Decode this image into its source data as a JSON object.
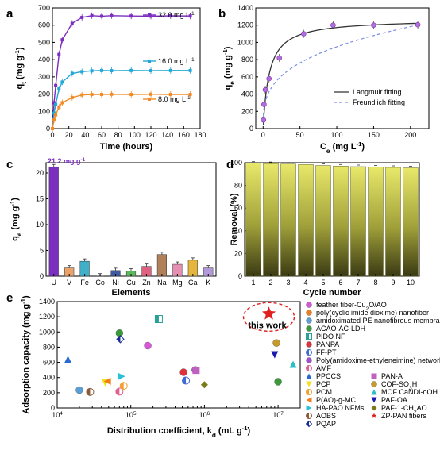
{
  "figure": {
    "background": "#ffffff"
  },
  "chart_data": [
    {
      "panel": "a",
      "type": "line",
      "xlabel": "Time (hours)",
      "ylabel": "q",
      "ylabel_sub": "t",
      "ylabel_unit": " (mg g",
      "ylabel_unit_end": ")",
      "ylabel_exp": "-1",
      "xlim": [
        0,
        180
      ],
      "ylim": [
        0,
        700
      ],
      "xticks": [
        "0",
        "20",
        "40",
        "60",
        "80",
        "100",
        "120",
        "140",
        "160",
        "180"
      ],
      "yticks": [
        "0",
        "100",
        "200",
        "300",
        "400",
        "500",
        "600",
        "700"
      ],
      "x": [
        0,
        2,
        4,
        8,
        12,
        24,
        36,
        48,
        60,
        72,
        96,
        120,
        144,
        168
      ],
      "series": [
        {
          "name": "32.0 mg L",
          "name_exp": "-1",
          "color": "#7b2fbf",
          "values": [
            0,
            150,
            250,
            430,
            515,
            610,
            645,
            655,
            652,
            655,
            653,
            652,
            654,
            653
          ]
        },
        {
          "name": "16.0 mg L",
          "name_exp": "-1",
          "color": "#22a7d6",
          "values": [
            0,
            90,
            140,
            230,
            270,
            320,
            330,
            335,
            337,
            336,
            337,
            336,
            337,
            337
          ]
        },
        {
          "name": "8.0 mg L",
          "name_exp": "-1",
          "color": "#f28c28",
          "values": [
            0,
            50,
            80,
            125,
            150,
            180,
            195,
            198,
            198,
            199,
            198,
            199,
            198,
            198
          ]
        }
      ]
    },
    {
      "panel": "b",
      "type": "scatter",
      "xlabel": "C",
      "xlabel_sub": "e",
      "xlabel_unit": " (mg L",
      "xlabel_unit_end": ")",
      "xlabel_exp": "-1",
      "ylabel": "q",
      "ylabel_sub": "e",
      "ylabel_unit": " (mg g",
      "ylabel_unit_end": ")",
      "ylabel_exp": "-1",
      "xlim": [
        -10,
        225
      ],
      "ylim": [
        0,
        1400
      ],
      "xticks": [
        "0",
        "50",
        "100",
        "150",
        "200"
      ],
      "yticks": [
        "0",
        "200",
        "400",
        "600",
        "800",
        "1000",
        "1200",
        "1400"
      ],
      "points": [
        {
          "x": 0.5,
          "y": 100
        },
        {
          "x": 1.2,
          "y": 280
        },
        {
          "x": 3,
          "y": 450
        },
        {
          "x": 8,
          "y": 580
        },
        {
          "x": 22,
          "y": 820
        },
        {
          "x": 55,
          "y": 1100
        },
        {
          "x": 95,
          "y": 1200
        },
        {
          "x": 150,
          "y": 1200
        },
        {
          "x": 210,
          "y": 1205
        }
      ],
      "marker_color": "#b36be0",
      "fits": [
        {
          "name": "Langmuir fitting",
          "color": "#333333",
          "qm": 1270,
          "KL": 0.12
        },
        {
          "name": "Freundlich fitting",
          "color": "#7a8fe0",
          "KF": 220,
          "n": 3.15
        }
      ]
    },
    {
      "panel": "c",
      "type": "bar",
      "xlabel": "Elements",
      "ylabel": "q",
      "ylabel_sub": "e",
      "ylabel_unit": " (mg g",
      "ylabel_unit_end": ")",
      "ylabel_exp": "-1",
      "ylim": [
        0,
        22
      ],
      "yticks": [
        "0",
        "5",
        "10",
        "15",
        "20"
      ],
      "categories": [
        "U",
        "V",
        "Fe",
        "Co",
        "Ni",
        "Cu",
        "Zn",
        "Na",
        "Mg",
        "Ca",
        "K"
      ],
      "values": [
        21.2,
        1.6,
        2.9,
        0.05,
        1.1,
        1.0,
        1.9,
        4.2,
        2.3,
        3.1,
        1.6
      ],
      "colors": [
        "#7b2fbf",
        "#e9a36a",
        "#3fb0c8",
        "#9bbbd2",
        "#3f5aa0",
        "#5cb85c",
        "#e06080",
        "#b08058",
        "#e78fb3",
        "#e6b53d",
        "#b399d9"
      ],
      "annotation": "21.2 mg g",
      "annotation_exp": "-1"
    },
    {
      "panel": "d",
      "type": "bar",
      "xlabel": "Cycle number",
      "ylabel": "Removal (%)",
      "ylim": [
        0,
        100
      ],
      "yticks": [
        "0",
        "20",
        "40",
        "60",
        "80",
        "100"
      ],
      "categories": [
        "1",
        "2",
        "3",
        "4",
        "5",
        "6",
        "7",
        "8",
        "9",
        "10"
      ],
      "values": [
        99.5,
        99.2,
        98.8,
        98.3,
        97.5,
        97.0,
        96.5,
        96.2,
        95.8,
        95.4
      ],
      "bar_color_top": "#e8e86a",
      "bar_color_bottom": "#3a3a14"
    },
    {
      "panel": "e",
      "type": "scatter",
      "xlabel": "Distribution coefficient, k",
      "xlabel_sub": "d",
      "xlabel_unit": " (mL g",
      "xlabel_unit_end": ")",
      "xlabel_exp": "-1",
      "ylabel": "Adsorption capacity (mg g",
      "ylabel_end": ")",
      "ylabel_exp": "-1",
      "xscale": "log",
      "xlim": [
        10000,
        20000000
      ],
      "ylim": [
        0,
        1400
      ],
      "xticks": [
        {
          "base": "10",
          "exp": "4",
          "v": 10000
        },
        {
          "base": "10",
          "exp": "5",
          "v": 100000
        },
        {
          "base": "10",
          "exp": "6",
          "v": 1000000
        },
        {
          "base": "10",
          "exp": "7",
          "v": 10000000
        }
      ],
      "yticks": [
        "0",
        "200",
        "400",
        "600",
        "800",
        "1000",
        "1200",
        "1400"
      ],
      "highlight_label": "this work",
      "legend_col1": [
        {
          "label": "feather fiber-Cu",
          "sub": "2",
          "label2": "O/AO",
          "shape": "circle",
          "color": "#d955d9"
        },
        {
          "label": "poly(cyclic imide dioxime) nanofiber",
          "shape": "circle",
          "color": "#f07f1a"
        },
        {
          "label": "amidoximated PE nanofibrous membrane",
          "shape": "circle",
          "color": "#5aa0d6"
        },
        {
          "label": "ACAO-AC-LDH",
          "shape": "circle",
          "color": "#3a9a3a"
        },
        {
          "label": "PIDO NF",
          "shape": "square-half",
          "color": "#2aa198"
        },
        {
          "label": "PANPA",
          "shape": "circle",
          "color": "#e0303a"
        },
        {
          "label": "FF-PT",
          "shape": "circle-half",
          "color": "#3f6ad0"
        },
        {
          "label": "Poly(amidoxime-ethyleneimine) network",
          "shape": "circle",
          "color": "#a050d0"
        },
        {
          "label": "AMF",
          "shape": "circle-half",
          "color": "#e06090"
        },
        {
          "label": "PPCCS",
          "shape": "triangle-up",
          "color": "#2a6ad0"
        },
        {
          "label": "PCP",
          "shape": "triangle-down",
          "color": "#f2e01a"
        },
        {
          "label": "PCM",
          "shape": "circle-half",
          "color": "#f0a030"
        },
        {
          "label": "P(AO)-g-MC",
          "shape": "triangle-left",
          "color": "#f07f1a"
        },
        {
          "label": "HA-PAO NFMs",
          "shape": "triangle-right",
          "color": "#2ac0d8"
        },
        {
          "label": "AOBS",
          "shape": "circle-half",
          "color": "#8a5a3a"
        },
        {
          "label": "PQAP",
          "shape": "diamond-half",
          "color": "#1a2a9a"
        }
      ],
      "legend_col2": [
        {
          "label": "PAN-A",
          "shape": "square",
          "color": "#c060c0"
        },
        {
          "label": "COF-SO",
          "sub": "3",
          "label2": "H",
          "shape": "circle",
          "color": "#c89a2a"
        },
        {
          "label": "MOF CaNDI-oOH",
          "shape": "triangle-up",
          "color": "#2ac0c8"
        },
        {
          "label": "PAF-OA",
          "shape": "triangle-down",
          "color": "#1a1ab0"
        },
        {
          "label": "PAF-1-CH",
          "sub": "2",
          "label2": "AO",
          "shape": "diamond",
          "color": "#7a7a1a"
        },
        {
          "label": "ZP-PAN fibers",
          "shape": "star",
          "color": "#e02020"
        }
      ],
      "points": [
        {
          "x": 14000,
          "y": 640,
          "shape": "triangle-up",
          "color": "#2a6ad0"
        },
        {
          "x": 20000,
          "y": 235,
          "shape": "circle",
          "color": "#5aa0d6"
        },
        {
          "x": 28000,
          "y": 210,
          "shape": "circle-half",
          "color": "#8a5a3a"
        },
        {
          "x": 45000,
          "y": 330,
          "shape": "triangle-down",
          "color": "#f2e01a"
        },
        {
          "x": 48000,
          "y": 350,
          "shape": "triangle-left",
          "color": "#f07f1a"
        },
        {
          "x": 70000,
          "y": 985,
          "shape": "circle",
          "color": "#3a9a3a"
        },
        {
          "x": 72000,
          "y": 905,
          "shape": "diamond-half",
          "color": "#1a2a9a"
        },
        {
          "x": 70000,
          "y": 215,
          "shape": "circle-half",
          "color": "#e06090"
        },
        {
          "x": 75000,
          "y": 415,
          "shape": "triangle-right",
          "color": "#2ac0d8"
        },
        {
          "x": 80000,
          "y": 290,
          "shape": "circle-half",
          "color": "#f0a030"
        },
        {
          "x": 170000,
          "y": 820,
          "shape": "circle",
          "color": "#d955d9"
        },
        {
          "x": 240000,
          "y": 1170,
          "shape": "square-half",
          "color": "#2aa198"
        },
        {
          "x": 520000,
          "y": 470,
          "shape": "circle",
          "color": "#e0303a"
        },
        {
          "x": 560000,
          "y": 360,
          "shape": "circle-half",
          "color": "#3f6ad0"
        },
        {
          "x": 750000,
          "y": 500,
          "shape": "circle",
          "color": "#a050d0"
        },
        {
          "x": 770000,
          "y": 495,
          "shape": "square",
          "color": "#c060c0"
        },
        {
          "x": 1000000,
          "y": 305,
          "shape": "diamond",
          "color": "#7a7a1a"
        },
        {
          "x": 9500000,
          "y": 855,
          "shape": "circle",
          "color": "#c89a2a"
        },
        {
          "x": 9000000,
          "y": 700,
          "shape": "triangle-down",
          "color": "#1a1ab0"
        },
        {
          "x": 16000000,
          "y": 575,
          "shape": "triangle-up",
          "color": "#2ac0c8"
        },
        {
          "x": 10000000,
          "y": 345,
          "shape": "circle",
          "color": "#3a9a3a"
        },
        {
          "x": 7500000,
          "y": 1240,
          "shape": "star",
          "color": "#e02020"
        }
      ]
    }
  ]
}
